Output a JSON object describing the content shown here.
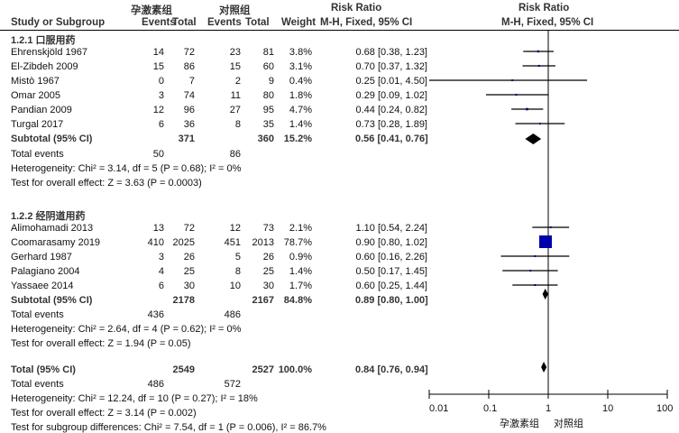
{
  "header": {
    "group_exp": "孕激素组",
    "group_ctrl": "对照组",
    "col_study": "Study or Subgroup",
    "col_events": "Events",
    "col_total": "Total",
    "col_weight": "Weight",
    "col_rr_title": "Risk Ratio",
    "col_rr_method": "M-H, Fixed, 95% CI",
    "plot_title": "Risk Ratio",
    "plot_method": "M-H, Fixed, 95% CI"
  },
  "subgroups": [
    {
      "title": "1.2.1 口服用药",
      "studies": [
        {
          "name": "Ehrenskjöld 1967",
          "e1": "14",
          "t1": "72",
          "e2": "23",
          "t2": "81",
          "w": "3.8%",
          "rr": "0.68 [0.38, 1.23]"
        },
        {
          "name": "El-Zibdeh 2009",
          "e1": "15",
          "t1": "86",
          "e2": "15",
          "t2": "60",
          "w": "3.1%",
          "rr": "0.70 [0.37, 1.32]"
        },
        {
          "name": "Mistò 1967",
          "e1": "0",
          "t1": "7",
          "e2": "2",
          "t2": "9",
          "w": "0.4%",
          "rr": "0.25 [0.01, 4.50]"
        },
        {
          "name": "Omar 2005",
          "e1": "3",
          "t1": "74",
          "e2": "11",
          "t2": "80",
          "w": "1.8%",
          "rr": "0.29 [0.09, 1.02]"
        },
        {
          "name": "Pandian 2009",
          "e1": "12",
          "t1": "96",
          "e2": "27",
          "t2": "95",
          "w": "4.7%",
          "rr": "0.44 [0.24, 0.82]"
        },
        {
          "name": "Turgal 2017",
          "e1": "6",
          "t1": "36",
          "e2": "8",
          "t2": "35",
          "w": "1.4%",
          "rr": "0.73 [0.28, 1.89]"
        }
      ],
      "subtotal": {
        "label": "Subtotal (95% CI)",
        "t1": "371",
        "t2": "360",
        "w": "15.2%",
        "rr": "0.56 [0.41, 0.76]"
      },
      "total_events": {
        "label": "Total events",
        "e1": "50",
        "e2": "86"
      },
      "heterogeneity": "Heterogeneity: Chi² = 3.14, df = 5 (P = 0.68); I² = 0%",
      "overall": "Test for overall effect: Z = 3.63 (P = 0.0003)"
    },
    {
      "title": "1.2.2 经阴道用药",
      "studies": [
        {
          "name": "Alimohamadi 2013",
          "e1": "13",
          "t1": "72",
          "e2": "12",
          "t2": "73",
          "w": "2.1%",
          "rr": "1.10 [0.54, 2.24]"
        },
        {
          "name": "Coomarasamy 2019",
          "e1": "410",
          "t1": "2025",
          "e2": "451",
          "t2": "2013",
          "w": "78.7%",
          "rr": "0.90 [0.80, 1.02]"
        },
        {
          "name": "Gerhard 1987",
          "e1": "3",
          "t1": "26",
          "e2": "5",
          "t2": "26",
          "w": "0.9%",
          "rr": "0.60 [0.16, 2.26]"
        },
        {
          "name": "Palagiano 2004",
          "e1": "4",
          "t1": "25",
          "e2": "8",
          "t2": "25",
          "w": "1.4%",
          "rr": "0.50 [0.17, 1.45]"
        },
        {
          "name": "Yassaee 2014",
          "e1": "6",
          "t1": "30",
          "e2": "10",
          "t2": "30",
          "w": "1.7%",
          "rr": "0.60 [0.25, 1.44]"
        }
      ],
      "subtotal": {
        "label": "Subtotal (95% CI)",
        "t1": "2178",
        "t2": "2167",
        "w": "84.8%",
        "rr": "0.89 [0.80, 1.00]"
      },
      "total_events": {
        "label": "Total events",
        "e1": "436",
        "e2": "486"
      },
      "heterogeneity": "Heterogeneity: Chi² = 2.64, df = 4 (P = 0.62); I² = 0%",
      "overall": "Test for overall effect: Z = 1.94 (P = 0.05)"
    }
  ],
  "total": {
    "label": "Total (95% CI)",
    "t1": "2549",
    "t2": "2527",
    "w": "100.0%",
    "rr": "0.84 [0.76, 0.94]",
    "total_events": {
      "label": "Total events",
      "e1": "486",
      "e2": "572"
    },
    "heterogeneity": "Heterogeneity: Chi² = 12.24, df = 10 (P = 0.27); I² = 18%",
    "overall": "Test for overall effect: Z = 3.14 (P = 0.002)",
    "subgroup_diff": "Test for subgroup differences: Chi² = 7.54, df = 1 (P = 0.006), I² = 86.7%"
  },
  "axis": {
    "ticks": [
      "0.01",
      "0.1",
      "1",
      "10",
      "100"
    ],
    "favours_left": "孕激素组",
    "favours_right": "对照组"
  },
  "colors": {
    "square": "#000080",
    "big_square": "#0000aa",
    "line": "#000000",
    "diamond": "#000000"
  },
  "chart_data": {
    "type": "forest",
    "title": "Risk Ratio (M-H, Fixed, 95% CI)",
    "xlabel": "孕激素组 vs 对照组",
    "xscale": "log",
    "xlim": [
      0.01,
      100
    ],
    "xticks": [
      0.01,
      0.1,
      1,
      10,
      100
    ],
    "rows": [
      {
        "study": "Ehrenskjöld 1967",
        "group": "1.2.1 口服用药",
        "rr": 0.68,
        "lo": 0.38,
        "hi": 1.23,
        "weight": 3.8
      },
      {
        "study": "El-Zibdeh 2009",
        "group": "1.2.1 口服用药",
        "rr": 0.7,
        "lo": 0.37,
        "hi": 1.32,
        "weight": 3.1
      },
      {
        "study": "Mistò 1967",
        "group": "1.2.1 口服用药",
        "rr": 0.25,
        "lo": 0.01,
        "hi": 4.5,
        "weight": 0.4
      },
      {
        "study": "Omar 2005",
        "group": "1.2.1 口服用药",
        "rr": 0.29,
        "lo": 0.09,
        "hi": 1.02,
        "weight": 1.8
      },
      {
        "study": "Pandian 2009",
        "group": "1.2.1 口服用药",
        "rr": 0.44,
        "lo": 0.24,
        "hi": 0.82,
        "weight": 4.7
      },
      {
        "study": "Turgal 2017",
        "group": "1.2.1 口服用药",
        "rr": 0.73,
        "lo": 0.28,
        "hi": 1.89,
        "weight": 1.4
      },
      {
        "study": "Subtotal 1.2.1",
        "group": "1.2.1 口服用药",
        "rr": 0.56,
        "lo": 0.41,
        "hi": 0.76,
        "weight": 15.2,
        "diamond": true
      },
      {
        "study": "Alimohamadi 2013",
        "group": "1.2.2 经阴道用药",
        "rr": 1.1,
        "lo": 0.54,
        "hi": 2.24,
        "weight": 2.1
      },
      {
        "study": "Coomarasamy 2019",
        "group": "1.2.2 经阴道用药",
        "rr": 0.9,
        "lo": 0.8,
        "hi": 1.02,
        "weight": 78.7
      },
      {
        "study": "Gerhard 1987",
        "group": "1.2.2 经阴道用药",
        "rr": 0.6,
        "lo": 0.16,
        "hi": 2.26,
        "weight": 0.9
      },
      {
        "study": "Palagiano 2004",
        "group": "1.2.2 经阴道用药",
        "rr": 0.5,
        "lo": 0.17,
        "hi": 1.45,
        "weight": 1.4
      },
      {
        "study": "Yassaee 2014",
        "group": "1.2.2 经阴道用药",
        "rr": 0.6,
        "lo": 0.25,
        "hi": 1.44,
        "weight": 1.7
      },
      {
        "study": "Subtotal 1.2.2",
        "group": "1.2.2 经阴道用药",
        "rr": 0.89,
        "lo": 0.8,
        "hi": 1.0,
        "weight": 84.8,
        "diamond": true
      },
      {
        "study": "Total",
        "group": "Overall",
        "rr": 0.84,
        "lo": 0.76,
        "hi": 0.94,
        "weight": 100.0,
        "diamond": true
      }
    ]
  }
}
